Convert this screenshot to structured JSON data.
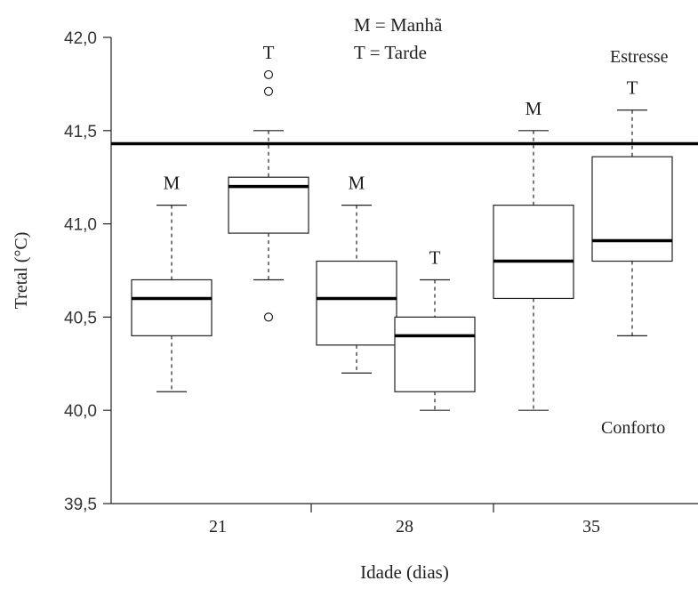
{
  "chart_data": {
    "type": "boxplot",
    "xlabel": "Idade (dias)",
    "ylabel": "Tretal (°C)",
    "ylim": [
      39.5,
      42.0
    ],
    "yticks": [
      {
        "v": 39.5,
        "label": "39,5"
      },
      {
        "v": 40.0,
        "label": "40,0"
      },
      {
        "v": 40.5,
        "label": "40,5"
      },
      {
        "v": 41.0,
        "label": "41,0"
      },
      {
        "v": 41.5,
        "label": "41,5"
      },
      {
        "v": 42.0,
        "label": "42,0"
      }
    ],
    "categories": [
      "21",
      "28",
      "35"
    ],
    "legend": [
      "M = Manhã",
      "T = Tarde"
    ],
    "threshold": 41.43,
    "zone_labels": {
      "above": "Estresse",
      "below": "Conforto"
    },
    "boxes": [
      {
        "group": "21",
        "period": "M",
        "min": 40.1,
        "q1": 40.4,
        "median": 40.6,
        "q3": 40.7,
        "max": 41.1,
        "outliers": []
      },
      {
        "group": "21",
        "period": "T",
        "min": 40.7,
        "q1": 40.95,
        "median": 41.2,
        "q3": 41.25,
        "max": 41.5,
        "outliers": [
          41.8,
          41.71,
          40.5
        ]
      },
      {
        "group": "28",
        "period": "M",
        "min": 40.2,
        "q1": 40.35,
        "median": 40.6,
        "q3": 40.8,
        "max": 41.1,
        "outliers": []
      },
      {
        "group": "28",
        "period": "T",
        "min": 40.0,
        "q1": 40.1,
        "median": 40.4,
        "q3": 40.5,
        "max": 40.7,
        "outliers": []
      },
      {
        "group": "35",
        "period": "M",
        "min": 40.0,
        "q1": 40.6,
        "median": 40.8,
        "q3": 41.1,
        "max": 41.5,
        "outliers": []
      },
      {
        "group": "35",
        "period": "T",
        "min": 40.4,
        "q1": 40.8,
        "median": 40.91,
        "q3": 41.36,
        "max": 41.61,
        "outliers": []
      }
    ]
  }
}
